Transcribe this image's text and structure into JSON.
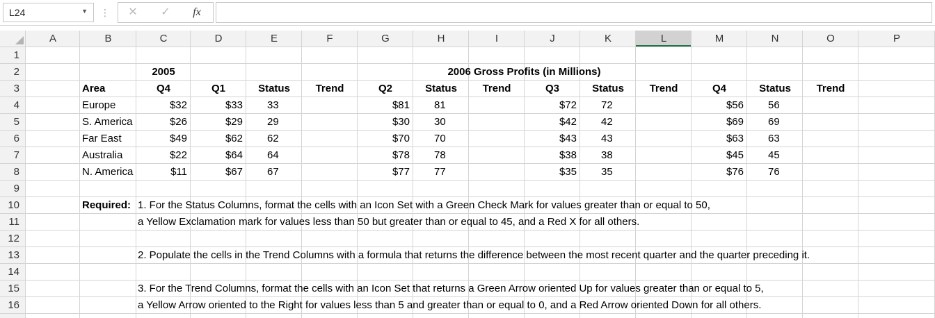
{
  "formula_bar": {
    "name_box": "L24",
    "cancel_icon": "✕",
    "enter_icon": "✓",
    "fx_label": "fx",
    "formula": ""
  },
  "columns": [
    "A",
    "B",
    "C",
    "D",
    "E",
    "F",
    "G",
    "H",
    "I",
    "J",
    "K",
    "L",
    "M",
    "N",
    "O",
    "P"
  ],
  "rows": [
    "1",
    "2",
    "3",
    "4",
    "5",
    "6",
    "7",
    "8",
    "9",
    "10",
    "11",
    "12",
    "13",
    "14",
    "15",
    "16"
  ],
  "header": {
    "year2005": "2005",
    "year2006": "2006 Gross Profits (in Millions)"
  },
  "col_heads": {
    "area": "Area",
    "c": "Q4",
    "d": "Q1",
    "e": "Status",
    "f": "Trend",
    "g": "Q2",
    "h": "Status",
    "i": "Trend",
    "j": "Q3",
    "k": "Status",
    "l": "Trend",
    "m": "Q4",
    "n": "Status",
    "o": "Trend"
  },
  "data_rows": [
    {
      "area": "Europe",
      "c": "$32",
      "d": "$33",
      "e": "33",
      "g": "$81",
      "h": "81",
      "j": "$72",
      "k": "72",
      "m": "$56",
      "n": "56"
    },
    {
      "area": "S. America",
      "c": "$26",
      "d": "$29",
      "e": "29",
      "g": "$30",
      "h": "30",
      "j": "$42",
      "k": "42",
      "m": "$69",
      "n": "69"
    },
    {
      "area": "Far East",
      "c": "$49",
      "d": "$62",
      "e": "62",
      "g": "$70",
      "h": "70",
      "j": "$43",
      "k": "43",
      "m": "$63",
      "n": "63"
    },
    {
      "area": "Australia",
      "c": "$22",
      "d": "$64",
      "e": "64",
      "g": "$78",
      "h": "78",
      "j": "$38",
      "k": "38",
      "m": "$45",
      "n": "45"
    },
    {
      "area": "N. America",
      "c": "$11",
      "d": "$67",
      "e": "67",
      "g": "$77",
      "h": "77",
      "j": "$35",
      "k": "35",
      "m": "$76",
      "n": "76"
    }
  ],
  "notes": {
    "required": "Required:",
    "line10": "1. For the Status Columns, format the cells with an Icon Set with a Green Check Mark for values greater than or equal to 50,",
    "line11": "a Yellow Exclamation mark for values less than 50 but greater than or equal to 45, and a Red X for all others.",
    "line13": "2. Populate the cells in the Trend Columns with a formula that returns the difference between the most recent quarter and the quarter preceding it.",
    "line15": "3. For the Trend Columns, format the cells with an Icon Set that returns a Green Arrow oriented Up for values greater than or equal to 5,",
    "line16": "a Yellow Arrow oriented to the Right for values less than 5 and greater than or equal to 0, and a Red Arrow oriented Down for all others."
  },
  "selected_column": "L",
  "colors": {
    "selected_header": "#d2d2d2",
    "selected_underline": "#217346",
    "gridline": "#d4d4d4",
    "header_bg": "#f2f2f2"
  }
}
